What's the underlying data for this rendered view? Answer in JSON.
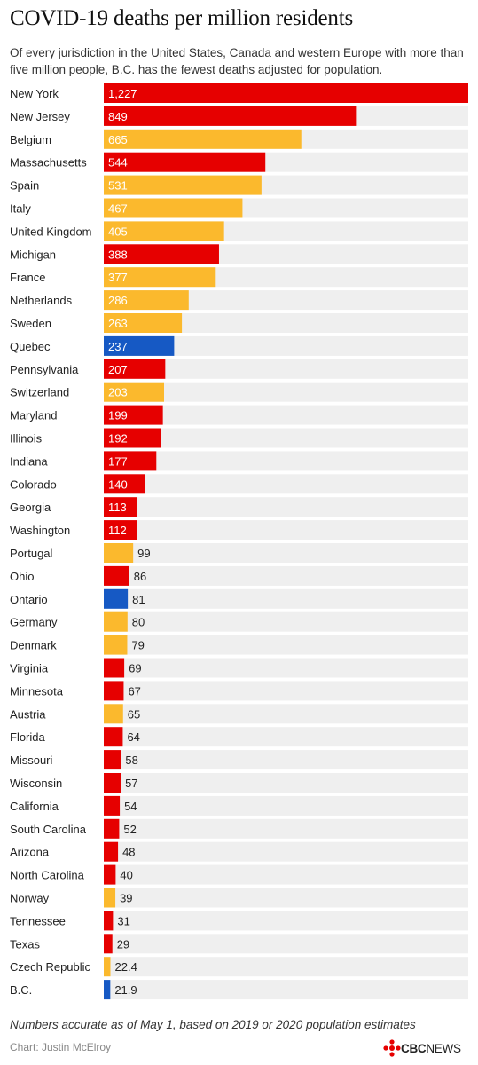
{
  "title": "COVID-19 deaths per million residents",
  "subtitle": "Of every jurisdiction in the United States, Canada and western Europe with more than five million people, B.C. has the fewest deaths adjusted for population.",
  "note": "Numbers accurate as of May 1, based on 2019 or 2020 population estimates",
  "credit": "Chart: Justin McElroy",
  "logo": {
    "cbc": "CBC",
    "news": "NEWS"
  },
  "colors": {
    "us_state": "#e60000",
    "europe": "#fbb92d",
    "canada": "#1659c4",
    "track": "#efefef"
  },
  "chart_data": {
    "type": "bar",
    "orientation": "horizontal",
    "categories": [
      "New York",
      "New Jersey",
      "Belgium",
      "Massachusetts",
      "Spain",
      "Italy",
      "United Kingdom",
      "Michigan",
      "France",
      "Netherlands",
      "Sweden",
      "Quebec",
      "Pennsylvania",
      "Switzerland",
      "Maryland",
      "Illinois",
      "Indiana",
      "Colorado",
      "Georgia",
      "Washington",
      "Portugal",
      "Ohio",
      "Ontario",
      "Germany",
      "Denmark",
      "Virginia",
      "Minnesota",
      "Austria",
      "Florida",
      "Missouri",
      "Wisconsin",
      "California",
      "South Carolina",
      "Arizona",
      "North Carolina",
      "Norway",
      "Tennessee",
      "Texas",
      "Czech Republic",
      "B.C."
    ],
    "values": [
      1227,
      849,
      665,
      544,
      531,
      467,
      405,
      388,
      377,
      286,
      263,
      237,
      207,
      203,
      199,
      192,
      177,
      140,
      113,
      112,
      99,
      86,
      81,
      80,
      79,
      69,
      67,
      65,
      64,
      58,
      57,
      54,
      52,
      48,
      40,
      39,
      31,
      29,
      22.4,
      21.9
    ],
    "labels": [
      "1,227",
      "849",
      "665",
      "544",
      "531",
      "467",
      "405",
      "388",
      "377",
      "286",
      "263",
      "237",
      "207",
      "203",
      "199",
      "192",
      "177",
      "140",
      "113",
      "112",
      "99",
      "86",
      "81",
      "80",
      "79",
      "69",
      "67",
      "65",
      "64",
      "58",
      "57",
      "54",
      "52",
      "48",
      "40",
      "39",
      "31",
      "29",
      "22.4",
      "21.9"
    ],
    "groups": [
      "us_state",
      "us_state",
      "europe",
      "us_state",
      "europe",
      "europe",
      "europe",
      "us_state",
      "europe",
      "europe",
      "europe",
      "canada",
      "us_state",
      "europe",
      "us_state",
      "us_state",
      "us_state",
      "us_state",
      "us_state",
      "us_state",
      "europe",
      "us_state",
      "canada",
      "europe",
      "europe",
      "us_state",
      "us_state",
      "europe",
      "us_state",
      "us_state",
      "us_state",
      "us_state",
      "us_state",
      "us_state",
      "us_state",
      "europe",
      "us_state",
      "us_state",
      "europe",
      "canada"
    ],
    "xlim": [
      0,
      1227
    ],
    "grid": false
  }
}
